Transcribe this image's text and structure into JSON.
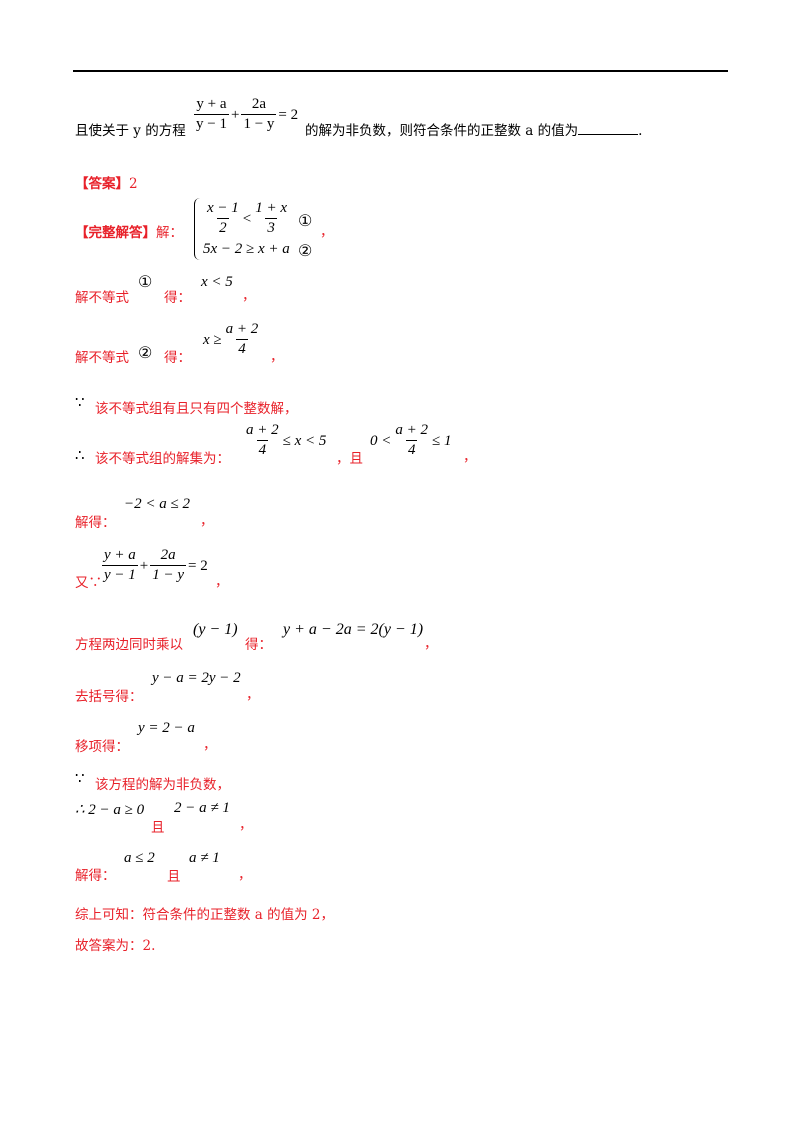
{
  "problem": {
    "lead": "且使关于 y 的方程",
    "f1_num": "y + a",
    "f1_den": "y − 1",
    "plus": "+",
    "f2_num": "2a",
    "f2_den": "1 − y",
    "eq2": "= 2",
    "tail": "的解为非负数，则符合条件的正整数 a 的值为",
    "end": "."
  },
  "answer": {
    "label": "【答案】",
    "value": "2"
  },
  "solution": {
    "label": "【完整解答】",
    "jie": "解：",
    "sys": {
      "ineq1_num_l": "x − 1",
      "ineq1_den_l": "2",
      "ineq1_rel": "<",
      "ineq1_num_r": "1 + x",
      "ineq1_den_r": "3",
      "mark1": "①",
      "ineq2": "5x − 2 ≥ x + a",
      "mark2": "②",
      "comma": "，"
    },
    "step1_text": "解不等式",
    "step1_mark": "①",
    "step1_de": "得：",
    "step1_result": "x < 5",
    "step1_comma": "，",
    "step2_text": "解不等式",
    "step2_mark": "②",
    "step2_de": "得：",
    "step2_rel": "x ≥",
    "step2_num": "a + 2",
    "step2_den": "4",
    "step2_comma": "，",
    "because1_sym": "∵",
    "because1_text": "该不等式组有且只有四个整数解，",
    "therefore1_sym": "∴",
    "therefore1_text": "该不等式组的解集为：",
    "t1_num": "a + 2",
    "t1_den": "4",
    "t1_rel": "≤ x < 5",
    "t1_and": "，且",
    "t1_left": "0 <",
    "t1_num2": "a + 2",
    "t1_den2": "4",
    "t1_right": "≤ 1",
    "t1_comma": "，",
    "solve1_label": "解得：",
    "solve1_expr": "−2 < a ≤ 2",
    "solve1_comma": "，",
    "also_label": "又∵",
    "also_f1_num": "y + a",
    "also_f1_den": "y − 1",
    "also_plus": "+",
    "also_f2_num": "2a",
    "also_f2_den": "1 − y",
    "also_eq": "= 2",
    "also_comma": "，",
    "mult_label": "方程两边同时乘以",
    "mult_factor": "(y − 1)",
    "mult_de": "得：",
    "mult_expr": "y + a − 2a = 2(y − 1)",
    "mult_comma": "，",
    "bracket_label": "去括号得：",
    "bracket_expr": "y − a = 2y − 2",
    "bracket_comma": "，",
    "move_label": "移项得：",
    "move_expr": "y = 2 − a",
    "move_comma": "，",
    "because2_sym": "∵",
    "because2_text": "该方程的解为非负数，",
    "therefore2_expr": "∴ 2 − a ≥ 0",
    "therefore2_and": "且",
    "therefore2_expr2": "2 − a ≠ 1",
    "therefore2_comma": "，",
    "solve2_label": "解得：",
    "solve2_expr": "a ≤ 2",
    "solve2_and": "且",
    "solve2_expr2": "a ≠ 1",
    "solve2_comma": "，",
    "summary": "综上可知：符合条件的正整数 a 的值为 2，",
    "final": "故答案为：2."
  }
}
